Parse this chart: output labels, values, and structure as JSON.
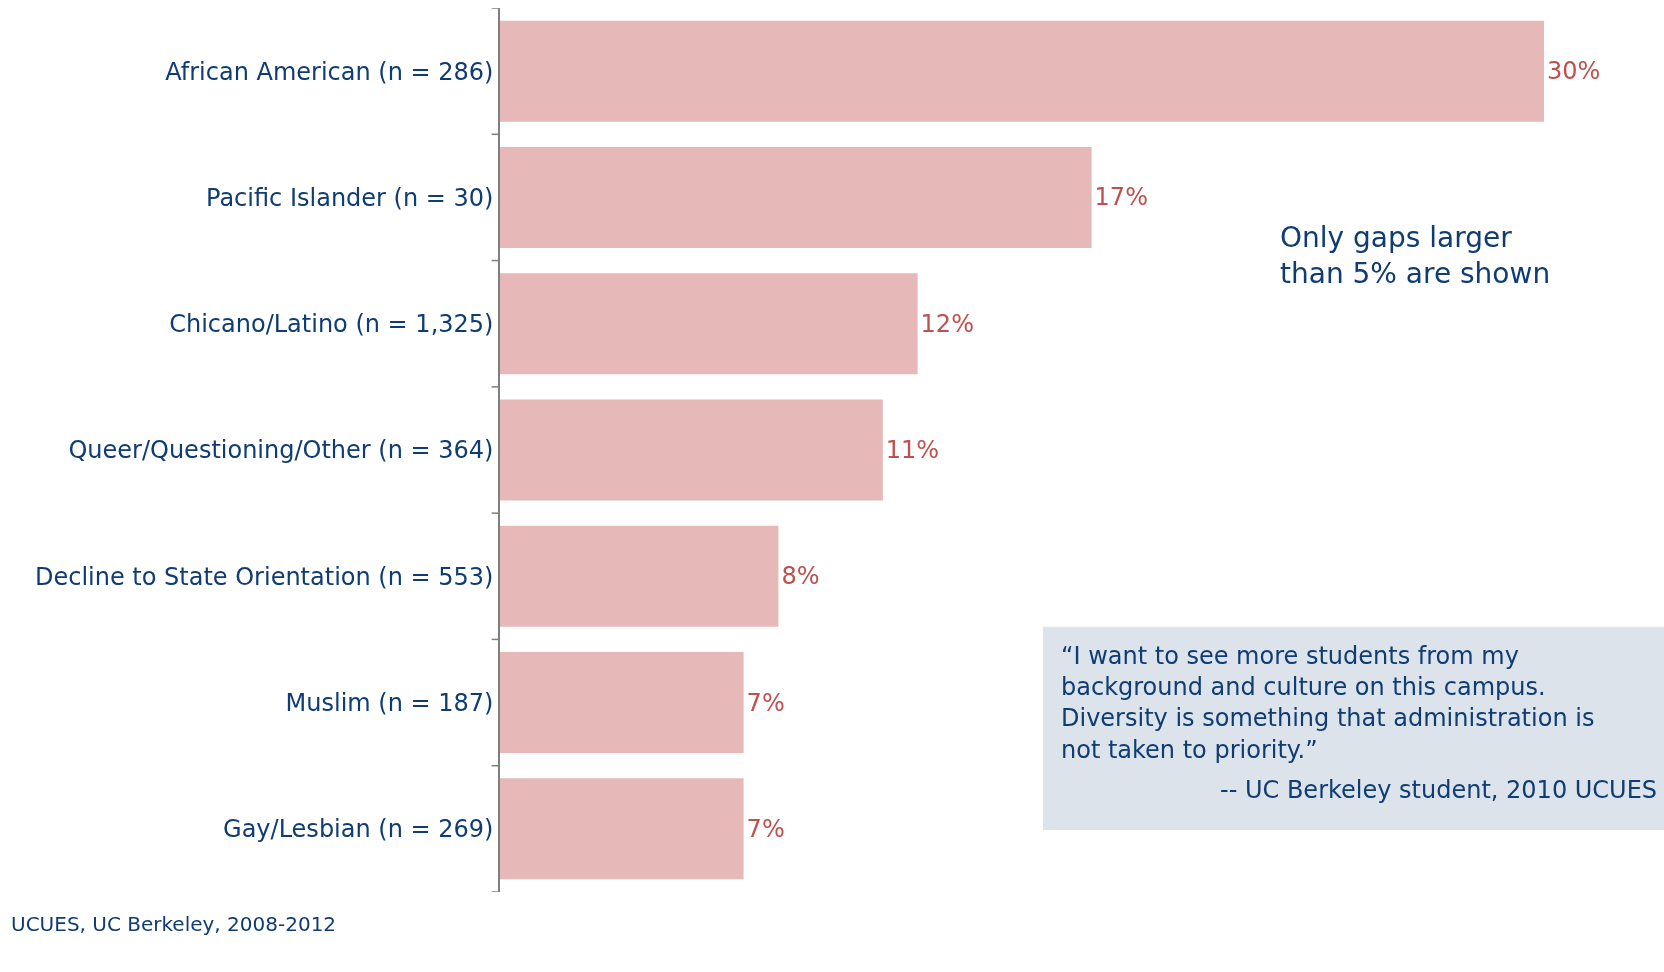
{
  "chart_data": {
    "type": "bar",
    "orientation": "horizontal",
    "categories": [
      "African American (n = 286)",
      "Pacific Islander (n = 30)",
      "Chicano/Latino (n = 1,325)",
      "Queer/Questioning/Other (n = 364)",
      "Decline to State Orientation (n = 553)",
      "Muslim (n = 187)",
      "Gay/Lesbian (n = 269)"
    ],
    "values": [
      30,
      17,
      12,
      11,
      8,
      7,
      7
    ],
    "value_labels": [
      "30%",
      "17%",
      "12%",
      "11%",
      "8%",
      "7%",
      "7%"
    ],
    "color": "#e6b8b7",
    "grid": false,
    "legend": false,
    "annotations": [
      "Only gaps larger\nthan 5% are shown",
      "“I want to see more students from my\nbackground and culture on this campus.\nDiversity is something that administration is\nnot taken to priority.”",
      "-- UC Berkeley student, 2010 UCUES",
      "UCUES, UC Berkeley, 2008-2012"
    ]
  }
}
